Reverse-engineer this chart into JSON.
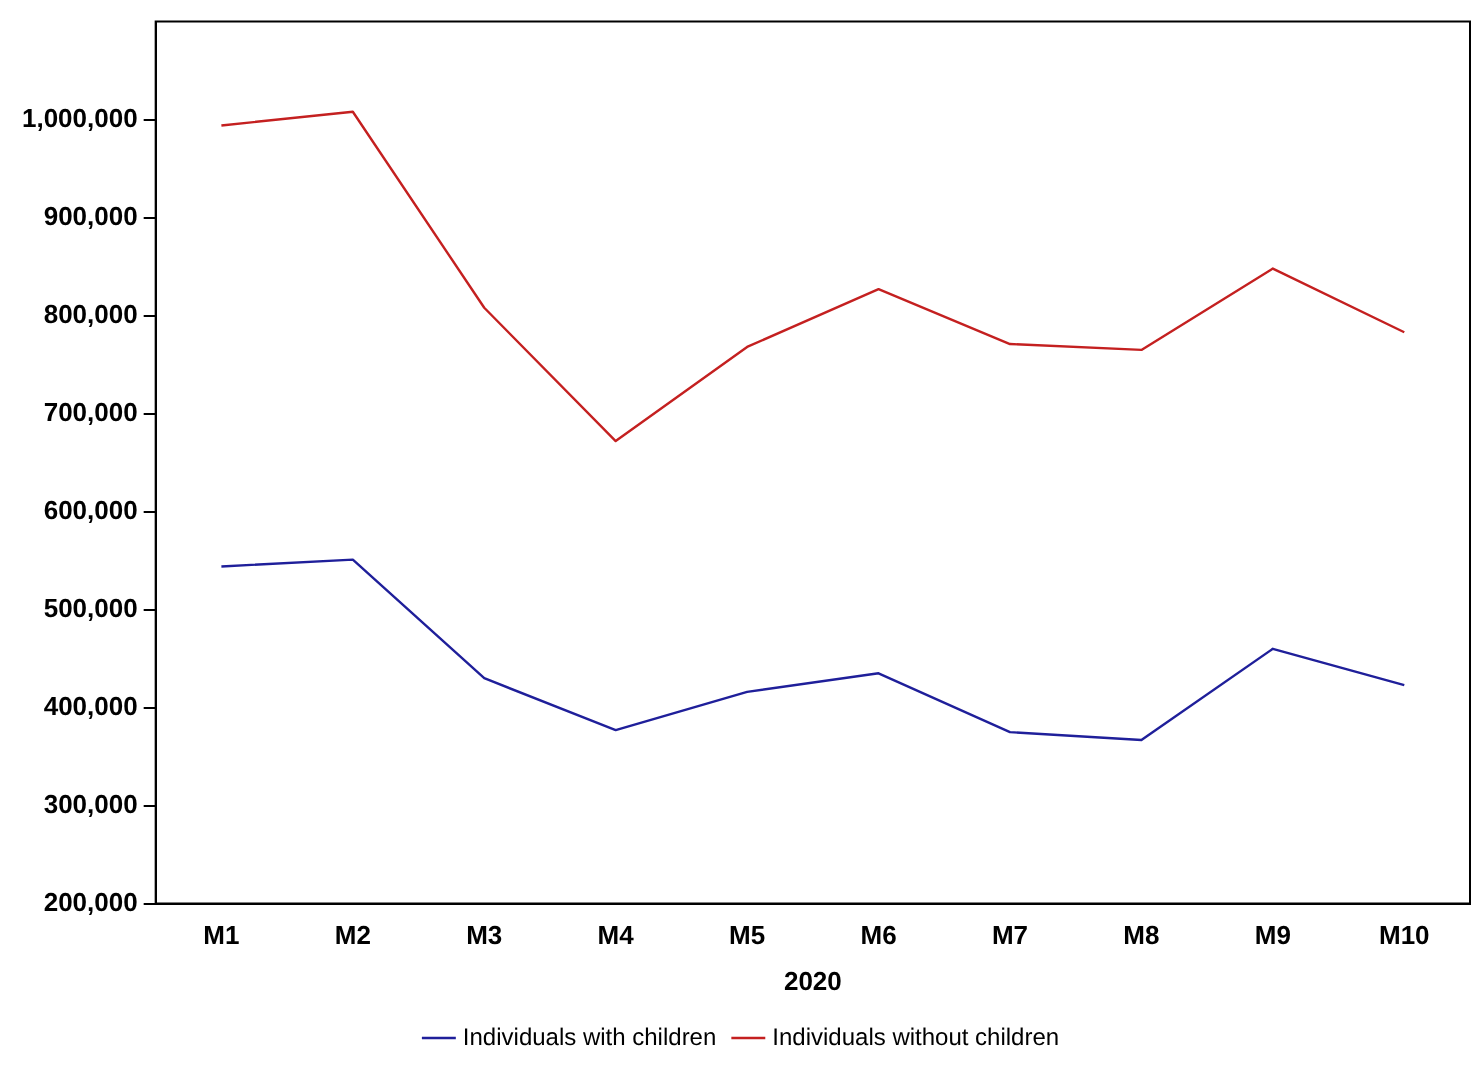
{
  "chart_data": {
    "type": "line",
    "xlabel": "2020",
    "categories": [
      "M1",
      "M2",
      "M3",
      "M4",
      "M5",
      "M6",
      "M7",
      "M8",
      "M9",
      "M10"
    ],
    "series": [
      {
        "name": "Individuals with children",
        "color": "#1f1f9a",
        "values": [
          544000,
          551000,
          430000,
          377000,
          416000,
          435000,
          375000,
          367000,
          460000,
          423000
        ]
      },
      {
        "name": "Individuals without children",
        "color": "#c42020",
        "values": [
          994000,
          1008000,
          808000,
          672000,
          768000,
          827000,
          771000,
          765000,
          848000,
          783000
        ]
      }
    ],
    "ylim": [
      200000,
      1100000
    ],
    "yticks": [
      {
        "value": 200000,
        "label": "200,000"
      },
      {
        "value": 300000,
        "label": "300,000"
      },
      {
        "value": 400000,
        "label": "400,000"
      },
      {
        "value": 500000,
        "label": "500,000"
      },
      {
        "value": 600000,
        "label": "600,000"
      },
      {
        "value": 700000,
        "label": "700,000"
      },
      {
        "value": 800000,
        "label": "800,000"
      },
      {
        "value": 900000,
        "label": "900,000"
      },
      {
        "value": 1000000,
        "label": "1,000,000"
      }
    ],
    "grid": false,
    "legend": "bottom",
    "marker": "none",
    "line_style": "solid"
  }
}
